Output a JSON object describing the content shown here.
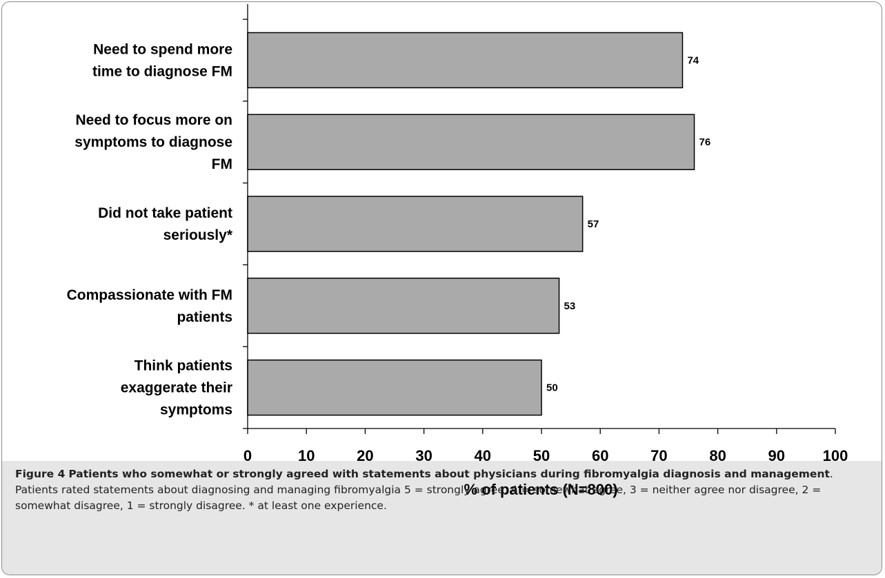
{
  "chart_data": {
    "type": "bar",
    "orientation": "horizontal",
    "categories": [
      [
        "Need to spend more",
        "time to diagnose FM"
      ],
      [
        "Need to focus more on",
        "symptoms to diagnose",
        "FM"
      ],
      [
        "Did not take patient",
        "seriously*"
      ],
      [
        "Compassionate with FM",
        "patients"
      ],
      [
        "Think patients",
        "exaggerate their",
        "symptoms"
      ]
    ],
    "values": [
      74,
      76,
      57,
      53,
      50
    ],
    "data_labels": [
      "74",
      "76",
      "57",
      "53",
      "50"
    ],
    "xlabel": "% of patients (N=800)",
    "ylabel": "",
    "xlim": [
      0,
      100
    ],
    "xticks": [
      0,
      10,
      20,
      30,
      40,
      50,
      60,
      70,
      80,
      90,
      100
    ],
    "grid": false,
    "bar_color": "#aaaaaa",
    "bar_edge_color": "#000000"
  },
  "caption": {
    "label": "Figure 4",
    "title": "Patients who somewhat or strongly agreed with statements about physicians during fibromyalgia diagnosis and management",
    "title_end": ".",
    "text": "Patients rated statements about diagnosing and managing fibromyalgia 5 = strongly agree, 4 = somewhat agree, 3 = neither agree nor disagree, 2 = somewhat disagree, 1 = strongly disagree. * at least one experience."
  },
  "colors": {
    "caption_background": "#e6e6e6",
    "frame_border": "#8a8a8a"
  }
}
